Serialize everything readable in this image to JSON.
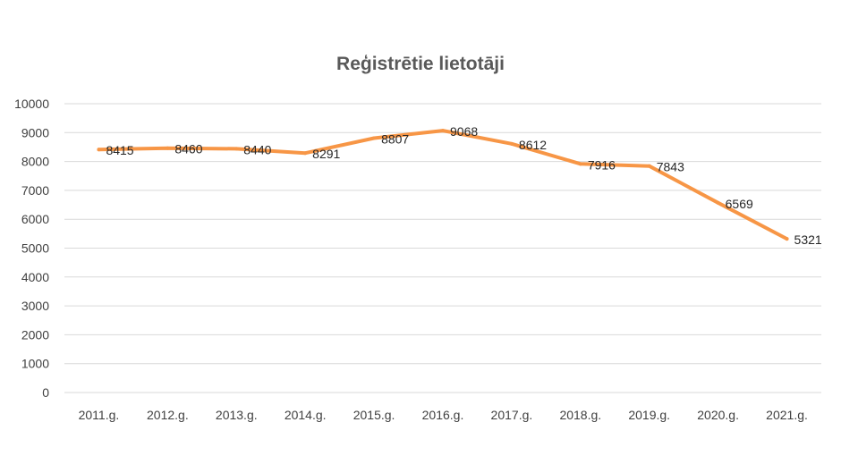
{
  "chart_data": {
    "type": "line",
    "title": "Reģistrētie lietotāji",
    "xlabel": "",
    "ylabel": "",
    "categories": [
      "2011.g.",
      "2012.g.",
      "2013.g.",
      "2014.g.",
      "2015.g.",
      "2016.g.",
      "2017.g.",
      "2018.g.",
      "2019.g.",
      "2020.g.",
      "2021.g."
    ],
    "series": [
      {
        "values": [
          8415,
          8460,
          8440,
          8291,
          8807,
          9068,
          8612,
          7916,
          7843,
          6569,
          5321
        ],
        "color": "#f79646"
      }
    ],
    "ylim": [
      0,
      10000
    ],
    "yticks": [
      0,
      1000,
      2000,
      3000,
      4000,
      5000,
      6000,
      7000,
      8000,
      9000,
      10000
    ],
    "grid": true,
    "legend": "none",
    "data_labels": true
  }
}
